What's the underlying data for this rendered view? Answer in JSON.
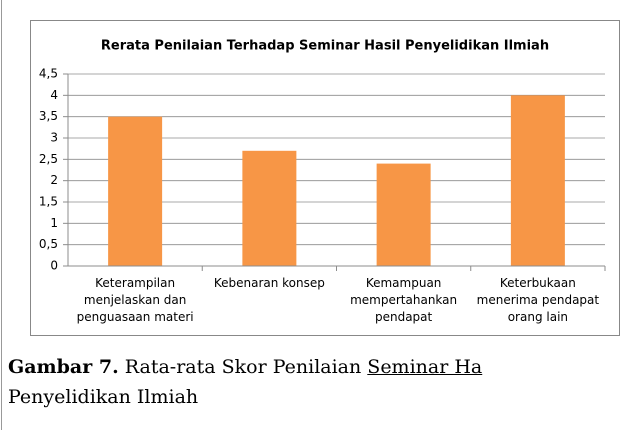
{
  "chart_data": {
    "type": "bar",
    "title": "Rerata Penilaian Terhadap Seminar Hasil Penyelidikan Ilmiah",
    "categories": [
      "Keterampilan\nmenjelaskan  dan\npenguasaan materi",
      "Kebenaran konsep",
      "Kemampuan\nmempertahankan\npendapat",
      "Keterbukaan\nmenerima pendapat\norang lain"
    ],
    "values": [
      3.5,
      2.7,
      2.4,
      4
    ],
    "color": "#f79646",
    "ylim": [
      0,
      4.5
    ],
    "yticks": [
      0,
      {
        "value": 0.5,
        "label": "0,5"
      },
      1,
      {
        "value": 1.5,
        "label": "1,5"
      },
      2,
      {
        "value": 2.5,
        "label": "2,5"
      },
      3,
      {
        "value": 3.5,
        "label": "3,5"
      },
      4,
      {
        "value": 4.5,
        "label": "4,5"
      }
    ],
    "grid": true
  },
  "caption": {
    "label": "Gambar 7.",
    "text": "Rata-rata Skor Penilaian",
    "underlined": "Seminar Ha",
    "line_2": "Penyelidikan Ilmiah"
  }
}
